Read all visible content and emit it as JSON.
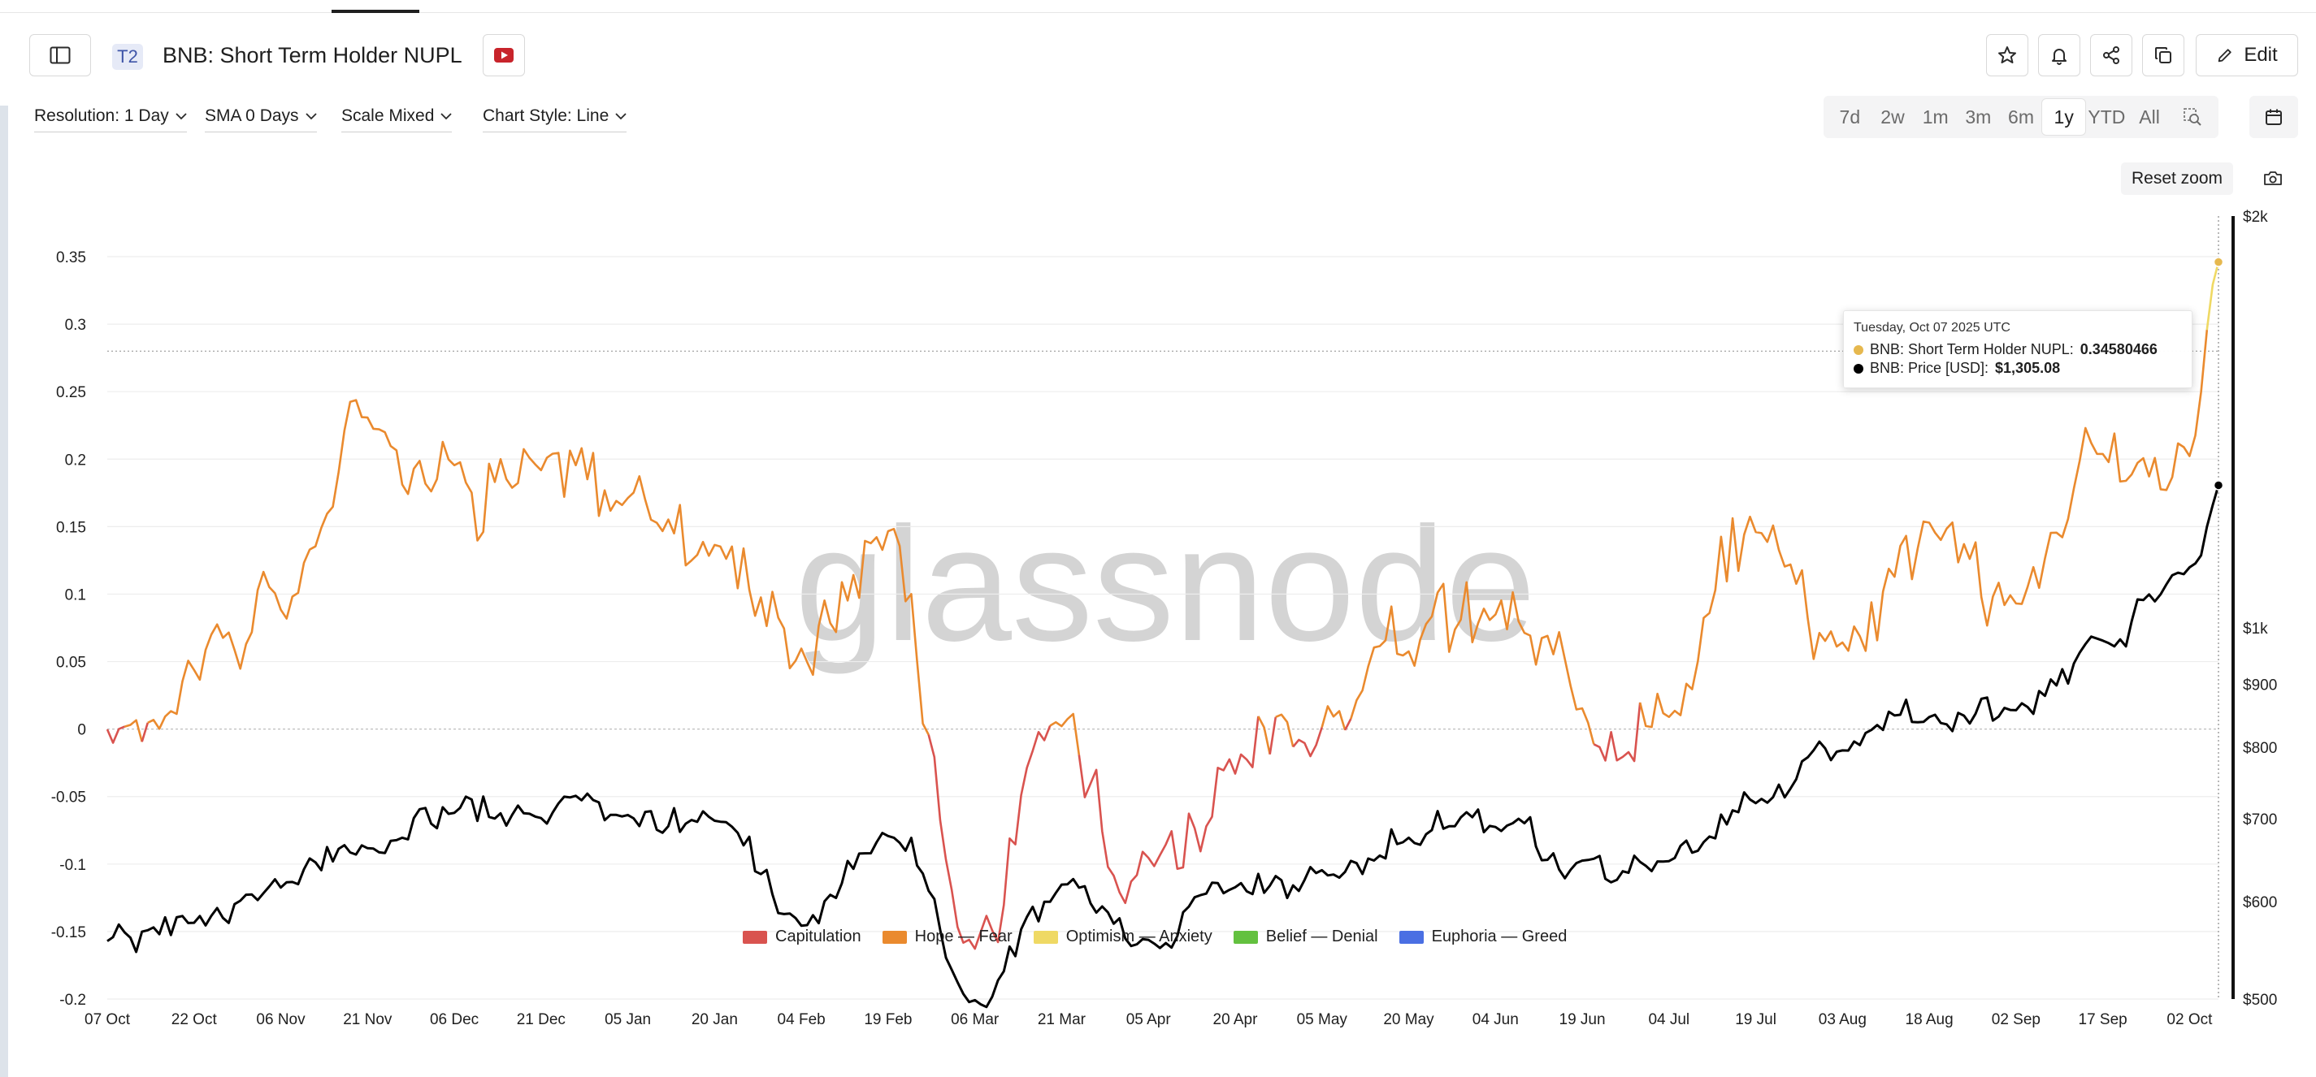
{
  "header": {
    "tier_badge": "T2",
    "title": "BNB: Short Term Holder NUPL",
    "edit_label": "Edit"
  },
  "controls": {
    "resolution": "Resolution: 1 Day",
    "sma": "SMA 0 Days",
    "scale": "Scale Mixed",
    "chart_style": "Chart Style: Line"
  },
  "ranges": [
    {
      "label": "7d",
      "active": false
    },
    {
      "label": "2w",
      "active": false
    },
    {
      "label": "1m",
      "active": false
    },
    {
      "label": "3m",
      "active": false
    },
    {
      "label": "6m",
      "active": false
    },
    {
      "label": "1y",
      "active": true
    },
    {
      "label": "YTD",
      "active": false
    },
    {
      "label": "All",
      "active": false
    }
  ],
  "reset_zoom_label": "Reset zoom",
  "watermark": "glassnode",
  "tooltip": {
    "date": "Tuesday, Oct 07 2025 UTC",
    "series1_label": "BNB: Short Term Holder NUPL:",
    "series1_value": "0.34580466",
    "series2_label": "BNB: Price [USD]:",
    "series2_value": "$1,305.08"
  },
  "colors": {
    "capitulation": "#d9534f",
    "hope_fear": "#ea8a2e",
    "optimism_anxiety": "#efd964",
    "belief_denial": "#63c13f",
    "euphoria_greed": "#4a6fe3",
    "price": "#000000"
  },
  "chart_data": {
    "type": "line",
    "title": "BNB: Short Term Holder NUPL",
    "left_axis": {
      "ticks": [
        0.35,
        0.3,
        0.25,
        0.2,
        0.15,
        0.1,
        0.05,
        0,
        -0.05,
        -0.1,
        -0.15,
        -0.2
      ],
      "tick_labels": [
        "0.35",
        "0.3",
        "0.25",
        "0.2",
        "0.15",
        "0.1",
        "0.05",
        "0",
        "-0.05",
        "-0.1",
        "-0.15",
        "-0.2"
      ],
      "range": [
        -0.2,
        0.35
      ]
    },
    "right_axis": {
      "scale": "log",
      "range": [
        500,
        2000
      ],
      "ticks": [
        2000,
        1000,
        900,
        800,
        700,
        600,
        500
      ],
      "tick_labels": [
        "$2k",
        "$1k",
        "$900",
        "$800",
        "$700",
        "$600",
        "$500"
      ]
    },
    "x_tick_labels": [
      "07 Oct",
      "22 Oct",
      "06 Nov",
      "21 Nov",
      "06 Dec",
      "21 Dec",
      "05 Jan",
      "20 Jan",
      "04 Feb",
      "19 Feb",
      "06 Mar",
      "21 Mar",
      "05 Apr",
      "20 Apr",
      "05 May",
      "20 May",
      "04 Jun",
      "19 Jun",
      "04 Jul",
      "19 Jul",
      "03 Aug",
      "18 Aug",
      "02 Sep",
      "17 Sep",
      "02 Oct"
    ],
    "x_dates": [
      "2024-10-07",
      "2024-10-22",
      "2024-11-06",
      "2024-11-21",
      "2024-12-06",
      "2024-12-21",
      "2025-01-05",
      "2025-01-20",
      "2025-02-04",
      "2025-02-19",
      "2025-03-06",
      "2025-03-21",
      "2025-04-05",
      "2025-04-20",
      "2025-05-05",
      "2025-05-20",
      "2025-06-04",
      "2025-06-19",
      "2025-07-04",
      "2025-07-19",
      "2025-08-03",
      "2025-08-18",
      "2025-09-02",
      "2025-09-17",
      "2025-10-02",
      "2025-10-07"
    ],
    "series": [
      {
        "name": "BNB: Short Term Holder NUPL",
        "axis": "left",
        "values": [
          -0.005,
          0.048,
          0.09,
          0.232,
          0.195,
          0.19,
          0.172,
          0.14,
          0.06,
          0.148,
          -0.16,
          0.004,
          -0.095,
          -0.035,
          0.005,
          0.06,
          0.085,
          0.018,
          0.015,
          0.15,
          0.07,
          0.15,
          0.09,
          0.2,
          0.205,
          0.346
        ]
      },
      {
        "name": "BNB: Price [USD]",
        "axis": "right",
        "values": [
          555,
          580,
          615,
          660,
          710,
          700,
          705,
          695,
          575,
          680,
          500,
          620,
          555,
          615,
          635,
          678,
          690,
          645,
          650,
          720,
          800,
          850,
          855,
          980,
          1120,
          1305.08
        ]
      }
    ],
    "legend": [
      "Capitulation",
      "Hope — Fear",
      "Optimism — Anxiety",
      "Belief — Denial",
      "Euphoria — Greed"
    ],
    "legend_position": "bottom",
    "grid": true
  }
}
